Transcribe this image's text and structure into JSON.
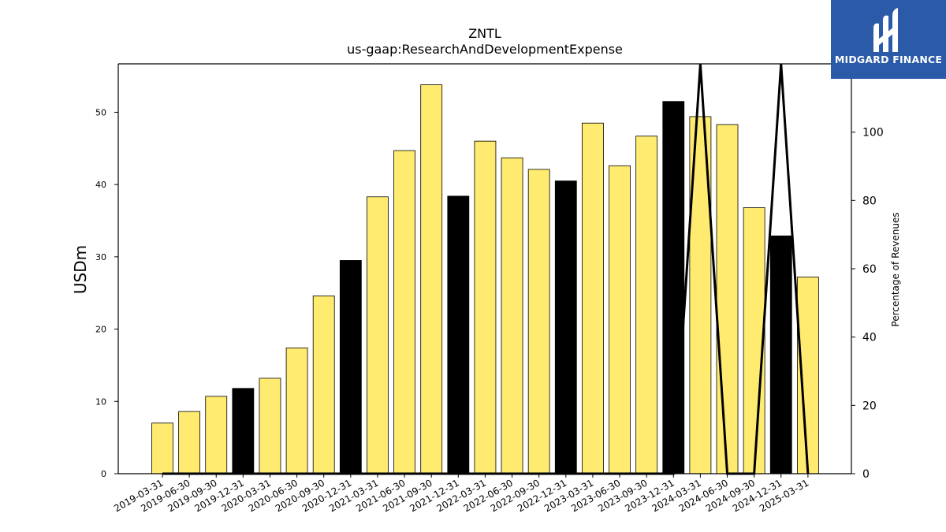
{
  "logo": {
    "text": "MIDGARD FINANCE",
    "icon": "midgard-logo-icon"
  },
  "colors": {
    "default_bar": "#ffeb70",
    "highlight_bar": "#000000",
    "line": "#000000",
    "logo_bg": "#2a5aa8"
  },
  "chart_data": {
    "type": "bar",
    "title": "ZNTL",
    "subtitle": "us-gaap:ResearchAndDevelopmentExpense",
    "ylabel": "USDm",
    "y2label": "Percentage of Revenues",
    "ylim": [
      0,
      56.7
    ],
    "y2lim": [
      0,
      120
    ],
    "yticks": [
      0,
      10,
      20,
      30,
      40,
      50
    ],
    "y2ticks": [
      0,
      20,
      40,
      60,
      80,
      100
    ],
    "categories": [
      "2019-03-31",
      "2019-06-30",
      "2019-09-30",
      "2019-12-31",
      "2020-03-31",
      "2020-06-30",
      "2020-09-30",
      "2020-12-31",
      "2021-03-31",
      "2021-06-30",
      "2021-09-30",
      "2021-12-31",
      "2022-03-31",
      "2022-06-30",
      "2022-09-30",
      "2022-12-31",
      "2023-03-31",
      "2023-06-30",
      "2023-09-30",
      "2023-12-31",
      "2024-03-31",
      "2024-06-30",
      "2024-09-30",
      "2024-12-31",
      "2025-03-31"
    ],
    "values": [
      7.0,
      8.6,
      10.7,
      11.8,
      13.2,
      17.4,
      24.6,
      29.5,
      38.3,
      44.7,
      53.8,
      38.4,
      46.0,
      43.7,
      42.1,
      40.5,
      48.5,
      42.6,
      46.7,
      51.5,
      49.4,
      48.3,
      36.8,
      32.9,
      27.2
    ],
    "highlight": [
      false,
      false,
      false,
      true,
      false,
      false,
      false,
      true,
      false,
      false,
      false,
      true,
      false,
      false,
      false,
      true,
      false,
      false,
      false,
      true,
      false,
      false,
      false,
      true,
      false
    ],
    "series": [
      {
        "name": "Percentage of Revenues",
        "type": "line",
        "axis": "right",
        "values": [
          0,
          0,
          0,
          0,
          0,
          0,
          0,
          0,
          0,
          0,
          0,
          0,
          0,
          0,
          0,
          0,
          0,
          0,
          0,
          0,
          120,
          0,
          0,
          120,
          0
        ]
      }
    ]
  }
}
